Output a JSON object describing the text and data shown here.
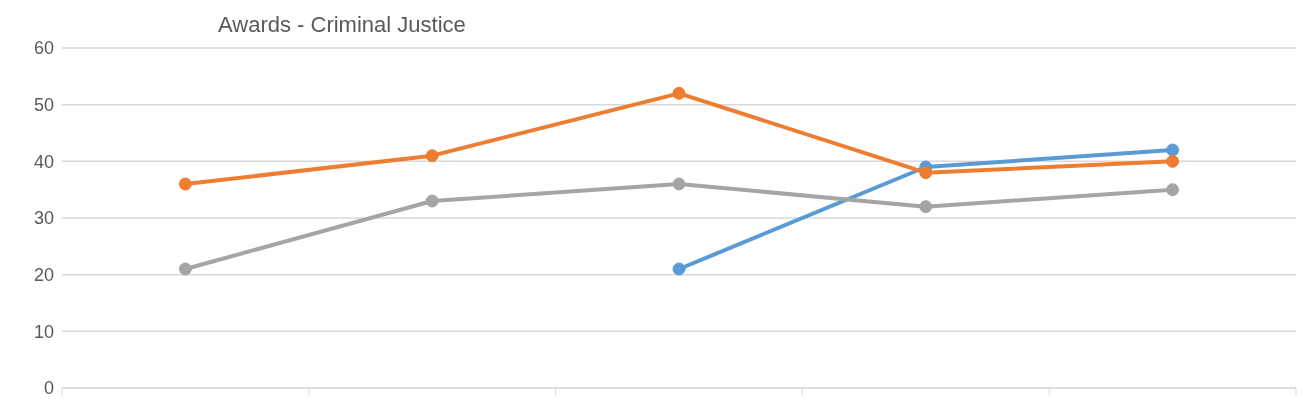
{
  "chart_data": {
    "type": "line",
    "title": "Awards  - Criminal Justice",
    "categories": [
      null,
      null,
      null,
      null,
      null
    ],
    "series": [
      {
        "color": "#5b9bd5",
        "values": [
          null,
          null,
          21,
          39,
          42
        ]
      },
      {
        "color": "#ed7d31",
        "values": [
          36,
          41,
          52,
          38,
          40
        ]
      },
      {
        "color": "#a5a5a5",
        "values": [
          21,
          33,
          36,
          32,
          35
        ]
      }
    ],
    "ylim": [
      0,
      60
    ],
    "yticks": [
      0,
      10,
      20,
      30,
      40,
      50,
      60
    ],
    "grid": "y",
    "tick_labels": "y",
    "marker": "circle",
    "line_style": "solid"
  }
}
